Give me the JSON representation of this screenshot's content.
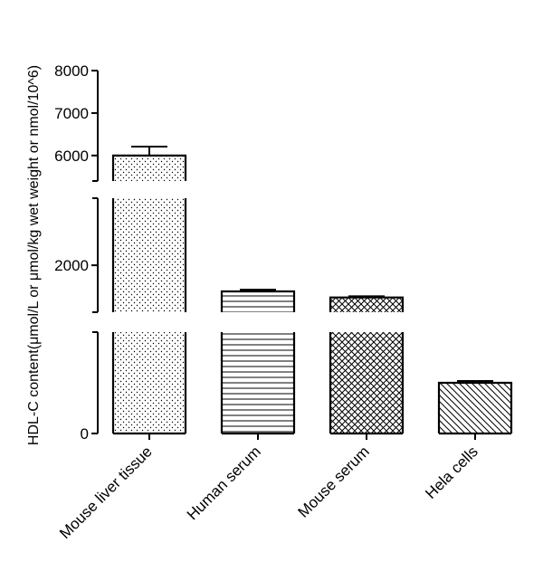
{
  "chart_data": {
    "type": "bar",
    "title": "",
    "ylabel": "HDL-C content(μmol/L or μmol/kg wet weight or nmol/10^6)",
    "xlabel": "",
    "axis_breaks": [
      {
        "ylim": [
          5400,
          8000
        ],
        "ticks": [
          6000,
          7000,
          8000
        ]
      },
      {
        "ylim": [
          1300,
          3000
        ],
        "ticks": [
          2000
        ]
      },
      {
        "ylim": [
          0,
          1000
        ],
        "ticks": [
          0
        ]
      }
    ],
    "categories": [
      "Mouse liver tissue",
      "Human serum",
      "Mouse serum",
      "Hela cells"
    ],
    "values": [
      6000,
      1610,
      1520,
      500
    ],
    "errors": [
      210,
      25,
      18,
      18
    ],
    "patterns": [
      "dots",
      "horizontal-lines",
      "crosshatch",
      "diagonal-lines"
    ],
    "grid": false,
    "legend": "none"
  }
}
